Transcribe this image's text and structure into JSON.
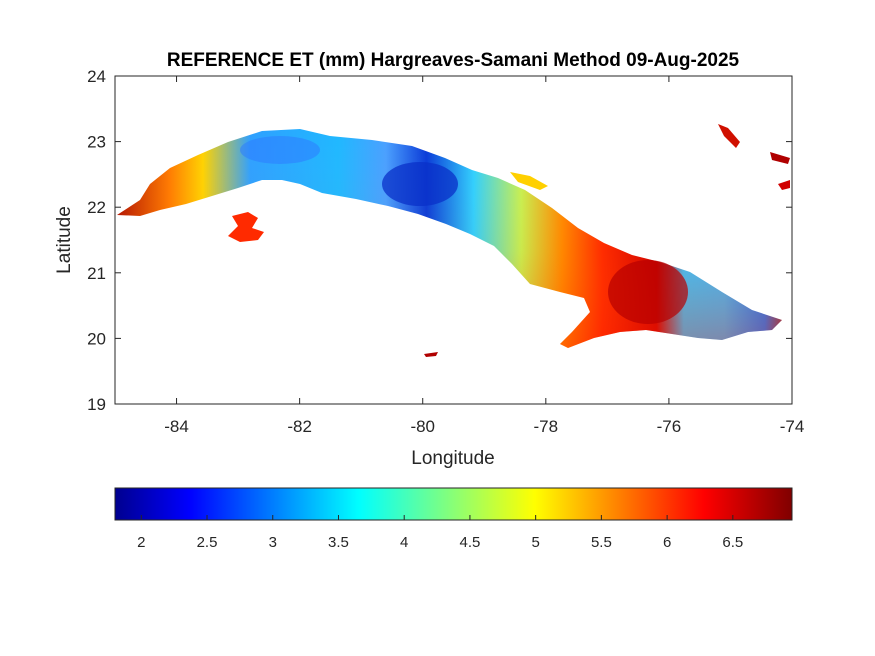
{
  "title": "REFERENCE ET (mm) Hargreaves-Samani Method  09-Aug-2025",
  "map": {
    "xlabel": "Longitude",
    "ylabel": "Latitude",
    "xlim": [
      -85,
      -74
    ],
    "ylim": [
      19,
      24
    ],
    "xticks": [
      -84,
      -82,
      -80,
      -78,
      -76,
      -74
    ],
    "yticks": [
      19,
      20,
      21,
      22,
      23,
      24
    ],
    "xtick_labels": [
      "-84",
      "-82",
      "-80",
      "-78",
      "-76",
      "-74"
    ],
    "ytick_labels": [
      "19",
      "20",
      "21",
      "22",
      "23",
      "24"
    ],
    "field": "Reference evapotranspiration (mm/day) over Cuba"
  },
  "colorbar": {
    "colormap": "jet",
    "range": [
      1.8,
      6.95
    ],
    "ticks": [
      2,
      2.5,
      3,
      3.5,
      4,
      4.5,
      5,
      5.5,
      6,
      6.5
    ],
    "tick_labels": [
      "2",
      "2.5",
      "3",
      "3.5",
      "4",
      "4.5",
      "5",
      "5.5",
      "6",
      "6.5"
    ]
  },
  "colors": {
    "jet_stops": [
      "#00008f",
      "#0000ff",
      "#00ffff",
      "#ffff00",
      "#ff0000",
      "#800000"
    ]
  }
}
